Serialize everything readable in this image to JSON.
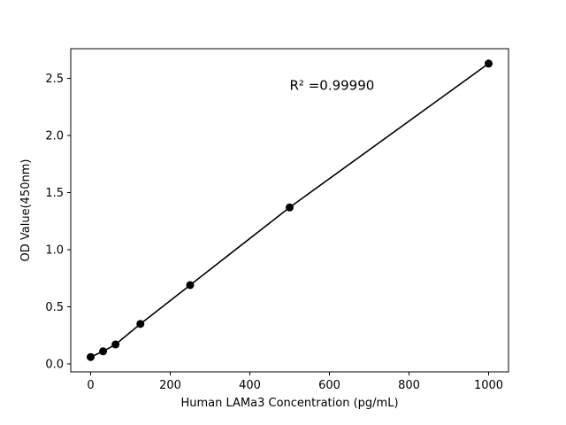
{
  "figure": {
    "background": "#ffffff",
    "foreground": "#000000"
  },
  "chart_data": {
    "type": "scatter",
    "title": "",
    "xlabel": "Human LAMa3 Concentration (pg/mL)",
    "ylabel": "OD Value(450nm)",
    "x": [
      0,
      31.25,
      62.5,
      125,
      250,
      500,
      1000
    ],
    "y": [
      0.06,
      0.11,
      0.17,
      0.35,
      0.69,
      1.37,
      2.63
    ],
    "line_through_points": true,
    "line_color": "#000000",
    "marker_color": "#000000",
    "marker_radius": 4.5,
    "xlim": [
      -50,
      1050
    ],
    "ylim": [
      -0.07,
      2.76
    ],
    "xticks": [
      0,
      200,
      400,
      600,
      800,
      1000
    ],
    "xtick_labels": [
      "0",
      "200",
      "400",
      "600",
      "800",
      "1000"
    ],
    "yticks": [
      0.0,
      0.5,
      1.0,
      1.5,
      2.0,
      2.5
    ],
    "ytick_labels": [
      "0.0",
      "0.5",
      "1.0",
      "1.5",
      "2.0",
      "2.5"
    ],
    "grid": false,
    "legend": null,
    "annotation": {
      "text": "R² =0.99990",
      "x": 500,
      "y": 2.4
    }
  }
}
